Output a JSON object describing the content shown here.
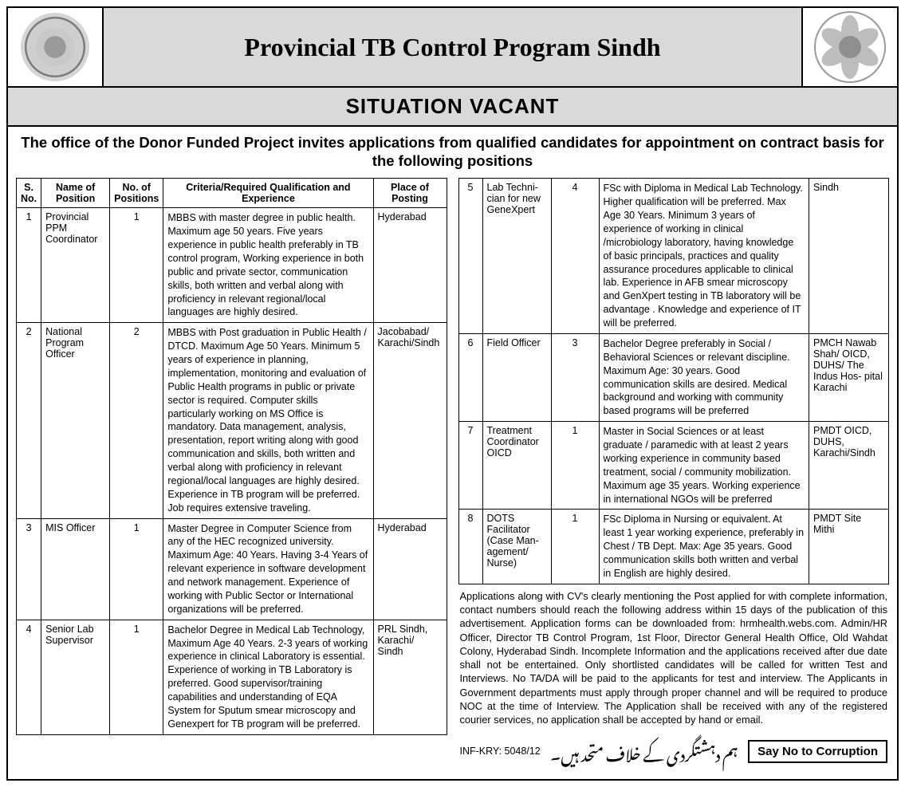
{
  "header": {
    "title": "Provincial TB Control Program Sindh",
    "subtitle": "SITUATION VACANT",
    "intro": "The office of the Donor Funded Project invites applications from qualified candidates for appointment on contract basis for the following positions"
  },
  "table": {
    "headers": {
      "sno": "S. No.",
      "name": "Name of Position",
      "num": "No. of Positions",
      "criteria": "Criteria/Required Qualification and Experience",
      "place": "Place of Posting"
    }
  },
  "rows_left": [
    {
      "sno": "1",
      "name": "Provincial PPM Coordinator",
      "num": "1",
      "criteria": "MBBS with master degree in public health. Maximum age 50 years. Five years experience in public health preferably in TB control program, Working experience in both public and private sector, communication skills, both written and verbal along with proficiency in relevant regional/local languages are highly desired.",
      "place": "Hyderabad"
    },
    {
      "sno": "2",
      "name": "National Program Officer",
      "num": "2",
      "criteria": "MBBS with Post graduation in Public Health / DTCD. Maximum Age 50 Years. Minimum 5 years of experience in planning, implementation, monitoring and evaluation of Public Health programs in public or private sector is required. Computer skills particularly working on MS Office is mandatory. Data management, analysis, presentation, report writing along with good communication and skills, both written and verbal along with proficiency in relevant regional/local languages are highly desired. Experience in TB program will be preferred. Job requires extensive traveling.",
      "place": "Jacobabad/ Karachi/Sindh"
    },
    {
      "sno": "3",
      "name": "MIS Officer",
      "num": "1",
      "criteria": "Master Degree in Computer Science from any of the HEC recognized university. Maximum Age: 40 Years. Having 3-4 Years of relevant experience in software development and network management. Experience of working with Public Sector or International organizations will be preferred.",
      "place": "Hyderabad"
    },
    {
      "sno": "4",
      "name": "Senior Lab Supervisor",
      "num": "1",
      "criteria": "Bachelor Degree in Medical Lab Technology, Maximum Age 40 Years. 2-3 years of working experience in clinical Laboratory is essential. Experience of working in TB Laboratory is preferred. Good supervisor/training capabilities and understanding of EQA System for Sputum smear microscopy and Genexpert for TB program will be preferred.",
      "place": "PRL Sindh, Karachi/ Sindh"
    }
  ],
  "rows_right": [
    {
      "sno": "5",
      "name": "Lab Techni- cian for new GeneXpert",
      "num": "4",
      "criteria": "FSc with Diploma in Medical Lab Technology. Higher qualification will be preferred. Max Age 30 Years. Minimum 3 years of experience of working in clinical /microbiology laboratory, having knowledge of basic principals, practices and quality assurance procedures applicable to clinical lab. Experience in AFB smear microscopy and GenXpert testing in TB laboratory will be advantage . Knowledge and experience of IT will be preferred.",
      "place": "Sindh"
    },
    {
      "sno": "6",
      "name": "Field Officer",
      "num": "3",
      "criteria": "Bachelor Degree preferably in Social / Behavioral Sciences or relevant discipline. Maximum Age: 30 years. Good communication skills are desired. Medical background and working with community based programs will be preferred",
      "place": "PMCH Nawab Shah/ OICD, DUHS/ The Indus Hos- pital Karachi"
    },
    {
      "sno": "7",
      "name": "Treatment Coordinator OICD",
      "num": "1",
      "criteria": "Master in Social Sciences or at least graduate / paramedic with at least 2 years working experience in community based treatment, social / community mobilization. Maximum age 35 years. Working experience in international NGOs will be preferred",
      "place": "PMDT OICD, DUHS, Karachi/Sindh"
    },
    {
      "sno": "8",
      "name": "DOTS Facilitator (Case Man- agement/ Nurse)",
      "num": "1",
      "criteria": "FSc Diploma in Nursing or equivalent. At least 1 year working experience, preferably in Chest / TB Dept. Max: Age 35 years. Good communication skills both written and verbal in English are highly desired.",
      "place": "PMDT Site Mithi"
    }
  ],
  "instructions": "Applications along with CV's clearly mentioning the Post applied for with complete information, contact numbers should reach the following address within 15 days of the publication of this advertisement. Application forms can be downloaded from: hrmhealth.webs.com. Admin/HR Officer, Director TB Control Program, 1st Floor, Director General Health Office, Old Wahdat Colony, Hyderabad Sindh. Incomplete Information and the applications received after due date shall not be entertained. Only shortlisted candidates will be called for written Test and Interviews. No TA/DA will be paid to the applicants for test and interview. The Applicants in Government departments must apply through proper channel and will be required to produce NOC at the time of Interview. The Application shall be received with any of the registered courier services, no application shall be accepted by hand or email.",
  "footer": {
    "ref": "INF-KRY: 5048/12",
    "urdu": "ہم دہشتگردی کے خلاف متحد ہیں۔",
    "corruption": "Say No to Corruption"
  },
  "style": {
    "header_bg": "#d9d9d9",
    "border": "#000000",
    "title_fontsize": 32,
    "subtitle_fontsize": 26,
    "intro_fontsize": 18.5,
    "body_fontsize": 12.5
  }
}
